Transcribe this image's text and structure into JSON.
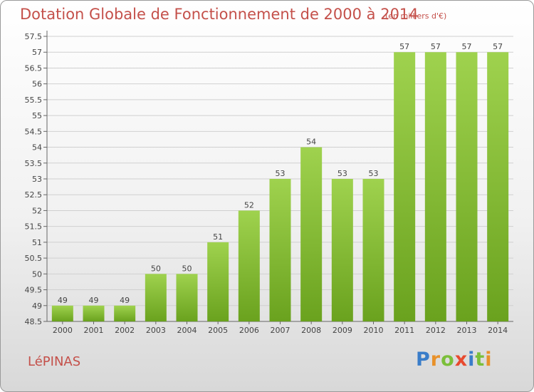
{
  "header": {
    "title": "Dotation Globale de Fonctionnement de 2000 à 2014",
    "unit": "(en milliers d'€)"
  },
  "footer": {
    "commune": "LéPINAS",
    "logo_letters": [
      "P",
      "r",
      "o",
      "x",
      "i",
      "t",
      "i"
    ],
    "logo_colors": [
      "#3a7dc9",
      "#e8912a",
      "#7bbf3a",
      "#e84a2f",
      "#3a7dc9",
      "#7bbf3a",
      "#e8912a"
    ]
  },
  "chart_data": {
    "type": "bar",
    "categories": [
      "2000",
      "2001",
      "2002",
      "2003",
      "2004",
      "2005",
      "2006",
      "2007",
      "2008",
      "2009",
      "2010",
      "2011",
      "2012",
      "2013",
      "2014"
    ],
    "values": [
      49,
      49,
      49,
      50,
      50,
      51,
      52,
      53,
      54,
      53,
      53,
      57,
      57,
      57,
      57
    ],
    "data_labels": [
      "49",
      "49",
      "49",
      "50",
      "50",
      "51",
      "52",
      "53",
      "54",
      "53",
      "53",
      "57",
      "57",
      "57",
      "57"
    ],
    "yticks": [
      "48.5",
      "49",
      "49.5",
      "50",
      "50.5",
      "51",
      "51.5",
      "52",
      "52.5",
      "53",
      "53.5",
      "54",
      "54.5",
      "55",
      "55.5",
      "56",
      "56.5",
      "57",
      "57.5"
    ],
    "ylim": [
      48.5,
      57.5
    ],
    "grid": true,
    "bar_color_light": "#9fd24e",
    "bar_color_dark": "#6aa21e"
  }
}
